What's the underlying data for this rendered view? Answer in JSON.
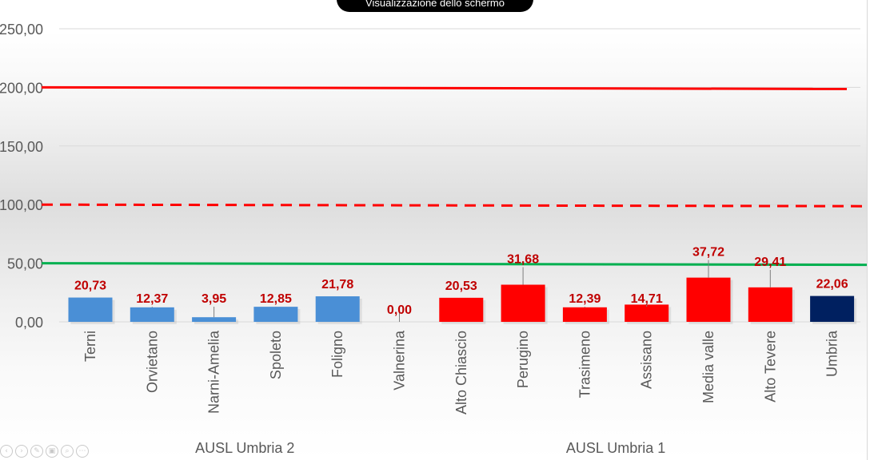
{
  "overlay": {
    "toast_text": "Visualizzazione dello schermo"
  },
  "toolbar": {
    "icons": [
      "prev-icon",
      "next-icon",
      "pen-icon",
      "slides-icon",
      "zoom-icon",
      "more-icon"
    ]
  },
  "chart_data": {
    "type": "bar",
    "title": "",
    "ylim": [
      0,
      250
    ],
    "yticks": [
      {
        "value": 0,
        "label": "0,00"
      },
      {
        "value": 50,
        "label": "50,00"
      },
      {
        "value": 100,
        "label": "100,00"
      },
      {
        "value": 150,
        "label": "150,00"
      },
      {
        "value": 200,
        "label": "200,00"
      },
      {
        "value": 250,
        "label": "250,00"
      }
    ],
    "grid": true,
    "categories": [
      "Terni",
      "Orvietano",
      "Narni-Amelia",
      "Spoleto",
      "Foligno",
      "Valnerina",
      "Alto Chiascio",
      "Perugino",
      "Trasimeno",
      "Assisano",
      "Media valle",
      "Alto Tevere",
      "Umbria"
    ],
    "values": [
      20.73,
      12.37,
      3.95,
      12.85,
      21.78,
      0.0,
      20.53,
      31.68,
      12.39,
      14.71,
      37.72,
      29.41,
      22.06
    ],
    "value_labels": [
      "20,73",
      "12,37",
      "3,95",
      "12,85",
      "21,78",
      "0,00",
      "20,53",
      "31,68",
      "12,39",
      "14,71",
      "37,72",
      "29,41",
      "22,06"
    ],
    "bar_colors": [
      "#4a8fd6",
      "#4a8fd6",
      "#4a8fd6",
      "#4a8fd6",
      "#4a8fd6",
      "#4a8fd6",
      "#ff0000",
      "#ff0000",
      "#ff0000",
      "#ff0000",
      "#ff0000",
      "#ff0000",
      "#002060"
    ],
    "groups": [
      {
        "label": "AUSL Umbria 2",
        "from": 0,
        "to": 5
      },
      {
        "label": "AUSL Umbria 1",
        "from": 6,
        "to": 11
      }
    ],
    "reference_lines": [
      {
        "value": 200,
        "color": "#ff0000",
        "style": "solid"
      },
      {
        "value": 100,
        "color": "#ff0000",
        "style": "dashed"
      },
      {
        "value": 50,
        "color": "#00b050",
        "style": "solid"
      }
    ],
    "colors": {
      "value_label": "#c00000",
      "axis_text": "#595959",
      "gridline": "#d9d9d9"
    }
  }
}
